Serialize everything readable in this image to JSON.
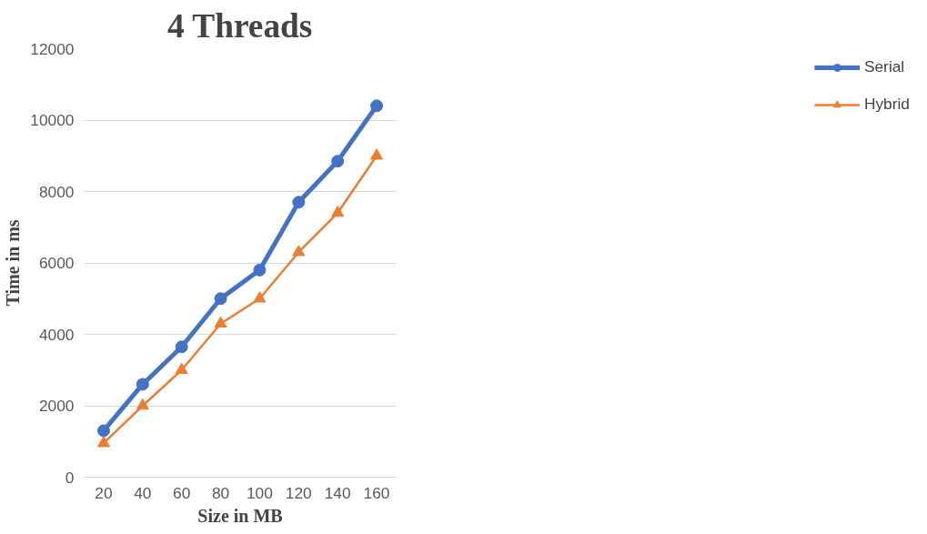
{
  "chart_data": {
    "type": "line",
    "title": "4 Threads",
    "xlabel": "Size in MB",
    "ylabel": "Time in ms",
    "categories": [
      "20",
      "40",
      "60",
      "80",
      "100",
      "120",
      "140",
      "160"
    ],
    "series": [
      {
        "name": "Serial",
        "color": "#4472c4",
        "marker": "circle",
        "values": [
          1300,
          2600,
          3650,
          5000,
          5800,
          7700,
          8850,
          10400
        ]
      },
      {
        "name": "Hybrid",
        "color": "#ed7d31",
        "marker": "triangle",
        "values": [
          950,
          2000,
          3000,
          4300,
          5000,
          6300,
          7400,
          9000
        ]
      }
    ],
    "ylim": [
      0,
      12000
    ],
    "yticks": [
      0,
      2000,
      4000,
      6000,
      8000,
      10000,
      12000
    ],
    "grid": "y",
    "legend": "right"
  }
}
